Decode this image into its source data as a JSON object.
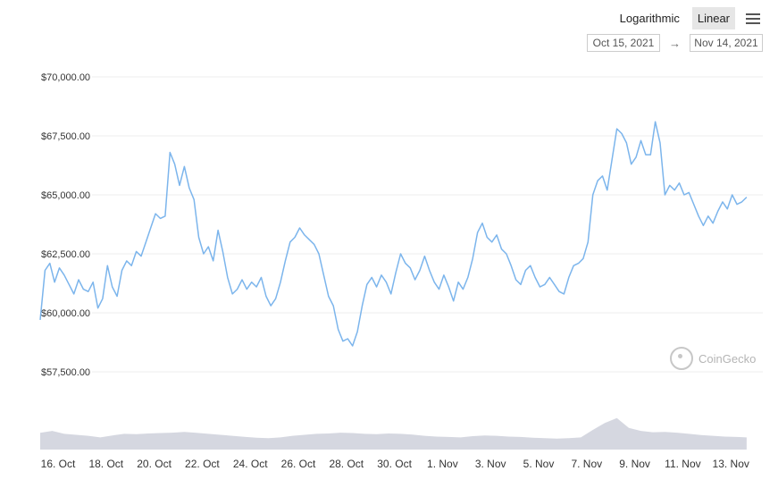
{
  "toolbar": {
    "logarithmic_label": "Logarithmic",
    "linear_label": "Linear",
    "menu_icon": "hamburger-menu-icon",
    "active_scale": "Linear"
  },
  "range": {
    "from": "Oct 15, 2021",
    "arrow": "→",
    "to": "Nov 14, 2021"
  },
  "watermark": {
    "text": "CoinGecko",
    "icon": "coingecko-logo-icon"
  },
  "colors": {
    "line": "#7cb5ec",
    "volume": "#d5d7e0",
    "grid": "#ececec"
  },
  "chart_data": {
    "type": "line",
    "title": "",
    "xlabel": "",
    "ylabel": "",
    "ylim": [
      57500,
      70000
    ],
    "y_ticks": [
      "$57,500.00",
      "$60,000.00",
      "$62,500.00",
      "$65,000.00",
      "$67,500.00",
      "$70,000.00"
    ],
    "x_ticks": [
      "16. Oct",
      "18. Oct",
      "20. Oct",
      "22. Oct",
      "24. Oct",
      "26. Oct",
      "28. Oct",
      "30. Oct",
      "1. Nov",
      "3. Nov",
      "5. Nov",
      "7. Nov",
      "9. Nov",
      "11. Nov",
      "13. Nov"
    ],
    "x_range_days": [
      15.0,
      45.4
    ],
    "grid": true,
    "series": [
      {
        "type": "line",
        "points": [
          [
            15.0,
            59700
          ],
          [
            15.2,
            61800
          ],
          [
            15.4,
            62100
          ],
          [
            15.6,
            61300
          ],
          [
            15.8,
            61900
          ],
          [
            16.0,
            61600
          ],
          [
            16.2,
            61200
          ],
          [
            16.4,
            60800
          ],
          [
            16.6,
            61400
          ],
          [
            16.8,
            61000
          ],
          [
            17.0,
            60900
          ],
          [
            17.2,
            61300
          ],
          [
            17.4,
            60200
          ],
          [
            17.6,
            60600
          ],
          [
            17.8,
            62000
          ],
          [
            18.0,
            61100
          ],
          [
            18.2,
            60700
          ],
          [
            18.4,
            61800
          ],
          [
            18.6,
            62200
          ],
          [
            18.8,
            62000
          ],
          [
            19.0,
            62600
          ],
          [
            19.2,
            62400
          ],
          [
            19.4,
            63000
          ],
          [
            19.6,
            63600
          ],
          [
            19.8,
            64200
          ],
          [
            20.0,
            64000
          ],
          [
            20.2,
            64100
          ],
          [
            20.4,
            66800
          ],
          [
            20.6,
            66300
          ],
          [
            20.8,
            65400
          ],
          [
            21.0,
            66200
          ],
          [
            21.2,
            65300
          ],
          [
            21.4,
            64800
          ],
          [
            21.6,
            63200
          ],
          [
            21.8,
            62500
          ],
          [
            22.0,
            62800
          ],
          [
            22.2,
            62200
          ],
          [
            22.4,
            63500
          ],
          [
            22.6,
            62600
          ],
          [
            22.8,
            61500
          ],
          [
            23.0,
            60800
          ],
          [
            23.2,
            61000
          ],
          [
            23.4,
            61400
          ],
          [
            23.6,
            61000
          ],
          [
            23.8,
            61300
          ],
          [
            24.0,
            61100
          ],
          [
            24.2,
            61500
          ],
          [
            24.4,
            60700
          ],
          [
            24.6,
            60300
          ],
          [
            24.8,
            60600
          ],
          [
            25.0,
            61300
          ],
          [
            25.2,
            62200
          ],
          [
            25.4,
            63000
          ],
          [
            25.6,
            63200
          ],
          [
            25.8,
            63600
          ],
          [
            26.0,
            63300
          ],
          [
            26.2,
            63100
          ],
          [
            26.4,
            62900
          ],
          [
            26.6,
            62500
          ],
          [
            26.8,
            61600
          ],
          [
            27.0,
            60700
          ],
          [
            27.2,
            60300
          ],
          [
            27.4,
            59300
          ],
          [
            27.6,
            58800
          ],
          [
            27.8,
            58900
          ],
          [
            28.0,
            58600
          ],
          [
            28.2,
            59200
          ],
          [
            28.4,
            60300
          ],
          [
            28.6,
            61200
          ],
          [
            28.8,
            61500
          ],
          [
            29.0,
            61100
          ],
          [
            29.2,
            61600
          ],
          [
            29.4,
            61300
          ],
          [
            29.6,
            60800
          ],
          [
            29.8,
            61700
          ],
          [
            30.0,
            62500
          ],
          [
            30.2,
            62100
          ],
          [
            30.4,
            61900
          ],
          [
            30.6,
            61400
          ],
          [
            30.8,
            61800
          ],
          [
            31.0,
            62400
          ],
          [
            31.2,
            61800
          ],
          [
            31.4,
            61300
          ],
          [
            31.6,
            61000
          ],
          [
            31.8,
            61600
          ],
          [
            32.0,
            61100
          ],
          [
            32.2,
            60500
          ],
          [
            32.4,
            61300
          ],
          [
            32.6,
            61000
          ],
          [
            32.8,
            61500
          ],
          [
            33.0,
            62300
          ],
          [
            33.2,
            63400
          ],
          [
            33.4,
            63800
          ],
          [
            33.6,
            63200
          ],
          [
            33.8,
            63000
          ],
          [
            34.0,
            63300
          ],
          [
            34.2,
            62700
          ],
          [
            34.4,
            62500
          ],
          [
            34.6,
            62000
          ],
          [
            34.8,
            61400
          ],
          [
            35.0,
            61200
          ],
          [
            35.2,
            61800
          ],
          [
            35.4,
            62000
          ],
          [
            35.6,
            61500
          ],
          [
            35.8,
            61100
          ],
          [
            36.0,
            61200
          ],
          [
            36.2,
            61500
          ],
          [
            36.4,
            61200
          ],
          [
            36.6,
            60900
          ],
          [
            36.8,
            60800
          ],
          [
            37.0,
            61500
          ],
          [
            37.2,
            62000
          ],
          [
            37.4,
            62100
          ],
          [
            37.6,
            62300
          ],
          [
            37.8,
            63000
          ],
          [
            38.0,
            65000
          ],
          [
            38.2,
            65600
          ],
          [
            38.4,
            65800
          ],
          [
            38.6,
            65200
          ],
          [
            38.8,
            66500
          ],
          [
            39.0,
            67800
          ],
          [
            39.2,
            67600
          ],
          [
            39.4,
            67200
          ],
          [
            39.6,
            66300
          ],
          [
            39.8,
            66600
          ],
          [
            40.0,
            67300
          ],
          [
            40.2,
            66700
          ],
          [
            40.4,
            66700
          ],
          [
            40.6,
            68100
          ],
          [
            40.8,
            67200
          ],
          [
            41.0,
            65000
          ],
          [
            41.2,
            65400
          ],
          [
            41.4,
            65200
          ],
          [
            41.6,
            65500
          ],
          [
            41.8,
            65000
          ],
          [
            42.0,
            65100
          ],
          [
            42.2,
            64600
          ],
          [
            42.4,
            64100
          ],
          [
            42.6,
            63700
          ],
          [
            42.8,
            64100
          ],
          [
            43.0,
            63800
          ],
          [
            43.2,
            64300
          ],
          [
            43.4,
            64700
          ],
          [
            43.6,
            64400
          ],
          [
            43.8,
            65000
          ],
          [
            44.0,
            64600
          ],
          [
            44.2,
            64700
          ],
          [
            44.4,
            64900
          ]
        ]
      },
      {
        "type": "volume",
        "points": [
          [
            15.0,
            0.85
          ],
          [
            15.5,
            0.95
          ],
          [
            16.0,
            0.8
          ],
          [
            16.5,
            0.75
          ],
          [
            17.0,
            0.7
          ],
          [
            17.5,
            0.62
          ],
          [
            18.0,
            0.72
          ],
          [
            18.5,
            0.8
          ],
          [
            19.0,
            0.78
          ],
          [
            19.5,
            0.82
          ],
          [
            20.0,
            0.84
          ],
          [
            20.5,
            0.86
          ],
          [
            21.0,
            0.9
          ],
          [
            21.5,
            0.85
          ],
          [
            22.0,
            0.8
          ],
          [
            22.5,
            0.75
          ],
          [
            23.0,
            0.7
          ],
          [
            23.5,
            0.65
          ],
          [
            24.0,
            0.6
          ],
          [
            24.5,
            0.58
          ],
          [
            25.0,
            0.62
          ],
          [
            25.5,
            0.7
          ],
          [
            26.0,
            0.75
          ],
          [
            26.5,
            0.8
          ],
          [
            27.0,
            0.82
          ],
          [
            27.5,
            0.86
          ],
          [
            28.0,
            0.84
          ],
          [
            28.5,
            0.8
          ],
          [
            29.0,
            0.78
          ],
          [
            29.5,
            0.82
          ],
          [
            30.0,
            0.8
          ],
          [
            30.5,
            0.76
          ],
          [
            31.0,
            0.7
          ],
          [
            31.5,
            0.66
          ],
          [
            32.0,
            0.64
          ],
          [
            32.5,
            0.62
          ],
          [
            33.0,
            0.68
          ],
          [
            33.5,
            0.72
          ],
          [
            34.0,
            0.7
          ],
          [
            34.5,
            0.66
          ],
          [
            35.0,
            0.64
          ],
          [
            35.5,
            0.6
          ],
          [
            36.0,
            0.58
          ],
          [
            36.5,
            0.56
          ],
          [
            37.0,
            0.58
          ],
          [
            37.5,
            0.62
          ],
          [
            38.0,
            1.0
          ],
          [
            38.5,
            1.35
          ],
          [
            39.0,
            1.6
          ],
          [
            39.5,
            1.1
          ],
          [
            40.0,
            0.95
          ],
          [
            40.5,
            0.88
          ],
          [
            41.0,
            0.9
          ],
          [
            41.5,
            0.86
          ],
          [
            42.0,
            0.8
          ],
          [
            42.5,
            0.74
          ],
          [
            43.0,
            0.7
          ],
          [
            43.5,
            0.66
          ],
          [
            44.0,
            0.64
          ],
          [
            44.4,
            0.62
          ]
        ]
      }
    ]
  }
}
